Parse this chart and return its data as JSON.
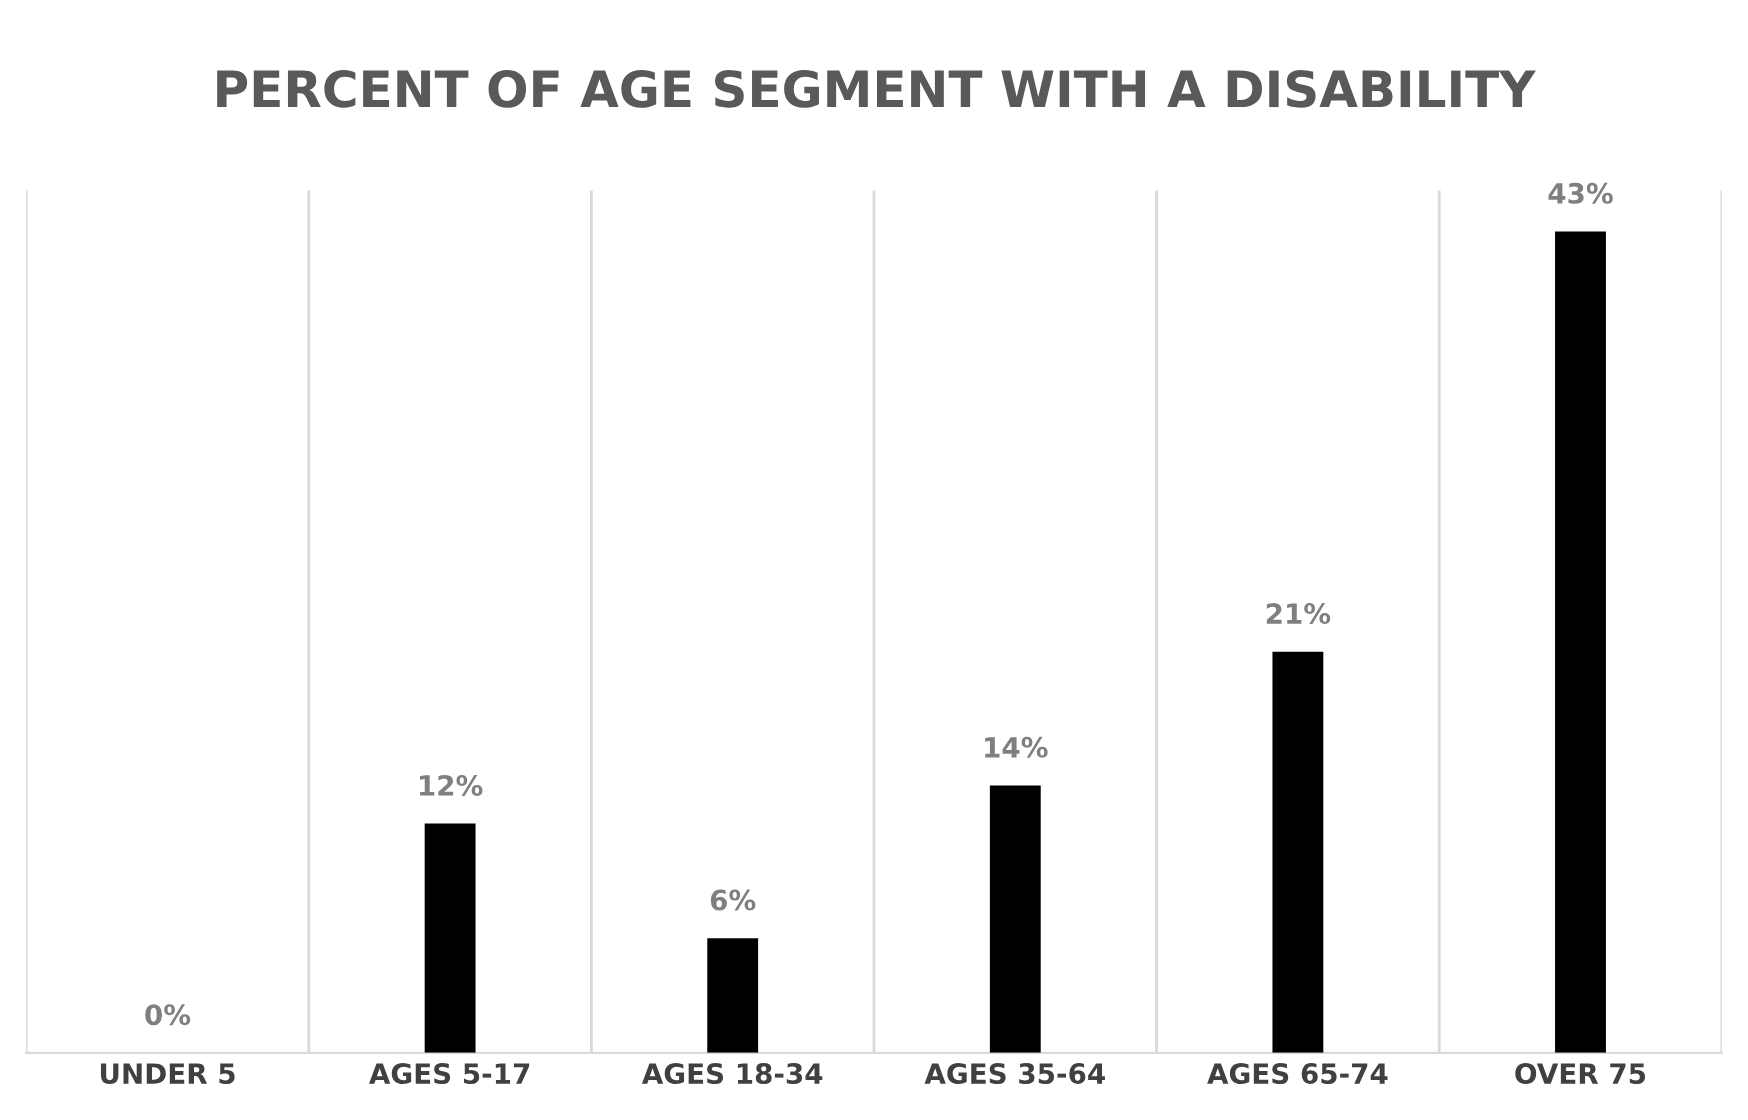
{
  "chart_data": {
    "type": "bar",
    "title": "PERCENT OF AGE SEGMENT WITH A DISABILITY",
    "categories": [
      "UNDER 5",
      "AGES 5-17",
      "AGES 18-34",
      "AGES 35-64",
      "AGES 65-74",
      "OVER 75"
    ],
    "values": [
      0,
      12,
      6,
      14,
      21,
      43
    ],
    "value_labels": [
      "0%",
      "12%",
      "6%",
      "14%",
      "21%",
      "43%"
    ],
    "color": "#000000",
    "grid": "x",
    "tick_labels": "x"
  }
}
